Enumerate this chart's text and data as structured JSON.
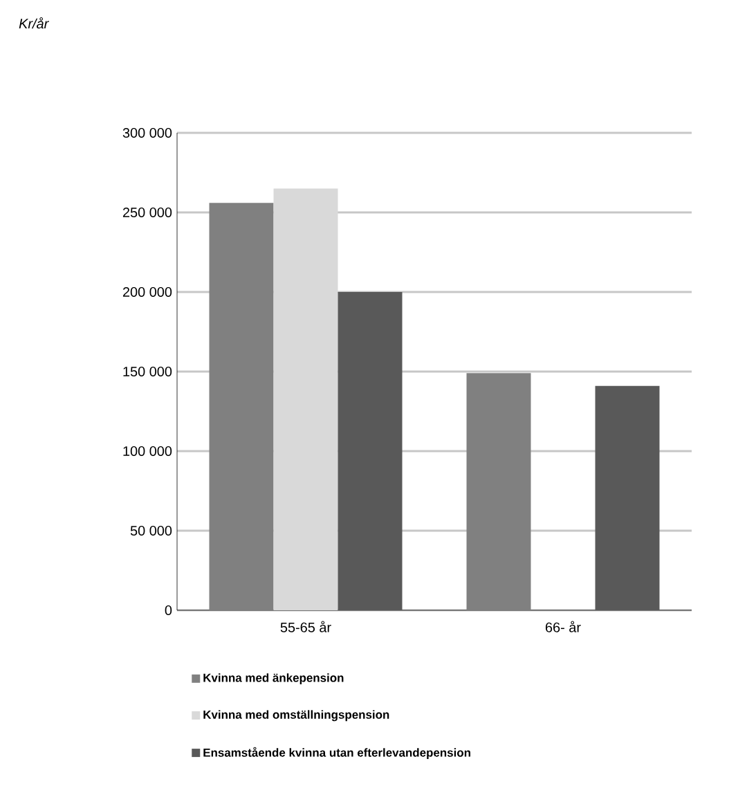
{
  "chart_data": {
    "type": "bar",
    "annotations": [
      "Kr/år"
    ],
    "categories": [
      "55-65 år",
      "66- år"
    ],
    "series": [
      {
        "name": "Kvinna med änkepension",
        "color": "#808080",
        "values": [
          256000,
          149000
        ]
      },
      {
        "name": "Kvinna med omställningspension",
        "color": "#d9d9d9",
        "values": [
          265000,
          null
        ]
      },
      {
        "name": "Ensamstående kvinna utan efterlevandepension",
        "color": "#595959",
        "values": [
          200000,
          141000
        ]
      }
    ],
    "ylim": [
      0,
      300000
    ],
    "yticks": [
      0,
      {
        "value": 50000,
        "label": "50 000"
      },
      {
        "value": 100000,
        "label": "100 000"
      },
      {
        "value": 150000,
        "label": "150 000"
      },
      {
        "value": 200000,
        "label": "200 000"
      },
      {
        "value": 250000,
        "label": "250 000"
      },
      {
        "value": 300000,
        "label": "300 000"
      }
    ],
    "grid": "y",
    "legend": "bottom"
  }
}
